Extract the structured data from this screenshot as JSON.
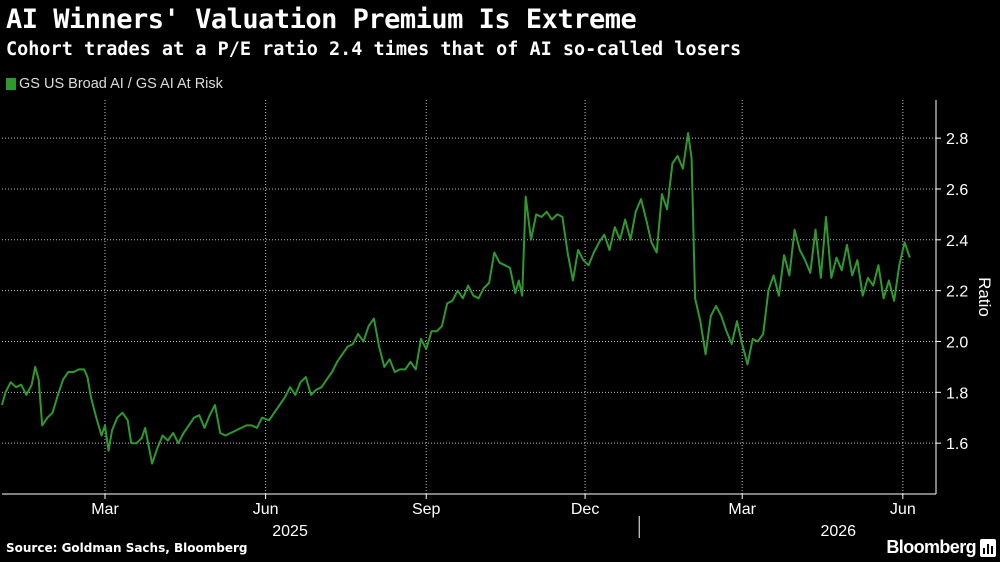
{
  "header": {
    "title": "AI Winners' Valuation Premium Is Extreme",
    "subtitle": "Cohort trades at a P/E ratio 2.4 times that of AI so-called losers"
  },
  "footer": {
    "source": "Source: Goldman Sachs, Bloomberg",
    "brand": "Bloomberg"
  },
  "colors": {
    "background": "#000000",
    "series": "#2e9a2e",
    "text": "#ffffff",
    "grid": "#ffffff"
  },
  "chart_data": {
    "type": "line",
    "title": "AI Winners' Valuation Premium Is Extreme",
    "subtitle": "Cohort trades at a P/E ratio 2.4 times that of AI so-called losers",
    "ylabel": "Ratio",
    "xlabel": "",
    "ylim": [
      1.4,
      2.95
    ],
    "yticks": [
      1.6,
      1.8,
      2.0,
      2.2,
      2.4,
      2.6,
      2.8
    ],
    "xlim": [
      "2025-01-01",
      "2026-06-20"
    ],
    "x_tick_labels": [
      {
        "date": "2025-03-01",
        "label": "Mar"
      },
      {
        "date": "2025-06-01",
        "label": "Jun"
      },
      {
        "date": "2025-09-01",
        "label": "Sep"
      },
      {
        "date": "2025-12-01",
        "label": "Dec"
      },
      {
        "date": "2026-03-01",
        "label": "Mar"
      },
      {
        "date": "2026-06-01",
        "label": "Jun"
      }
    ],
    "year_labels": [
      {
        "date": "2025-06-15",
        "label": "2025"
      },
      {
        "date": "2026-04-25",
        "label": "2026"
      }
    ],
    "year_divider": "2026-01-01",
    "grid": true,
    "legend_position": "top-left",
    "series": [
      {
        "name": "GS US Broad AI / GS AI At Risk",
        "color": "#2e9a2e",
        "points": [
          [
            "2025-01-01",
            1.75
          ],
          [
            "2025-01-03",
            1.8
          ],
          [
            "2025-01-06",
            1.84
          ],
          [
            "2025-01-09",
            1.82
          ],
          [
            "2025-01-12",
            1.83
          ],
          [
            "2025-01-15",
            1.79
          ],
          [
            "2025-01-18",
            1.83
          ],
          [
            "2025-01-20",
            1.9
          ],
          [
            "2025-01-22",
            1.85
          ],
          [
            "2025-01-24",
            1.67
          ],
          [
            "2025-01-27",
            1.7
          ],
          [
            "2025-01-30",
            1.72
          ],
          [
            "2025-02-02",
            1.79
          ],
          [
            "2025-02-05",
            1.85
          ],
          [
            "2025-02-08",
            1.88
          ],
          [
            "2025-02-11",
            1.88
          ],
          [
            "2025-02-14",
            1.89
          ],
          [
            "2025-02-17",
            1.89
          ],
          [
            "2025-02-19",
            1.86
          ],
          [
            "2025-02-21",
            1.78
          ],
          [
            "2025-02-24",
            1.7
          ],
          [
            "2025-02-27",
            1.63
          ],
          [
            "2025-03-01",
            1.67
          ],
          [
            "2025-03-03",
            1.57
          ],
          [
            "2025-03-05",
            1.65
          ],
          [
            "2025-03-08",
            1.7
          ],
          [
            "2025-03-11",
            1.72
          ],
          [
            "2025-03-14",
            1.69
          ],
          [
            "2025-03-16",
            1.6
          ],
          [
            "2025-03-19",
            1.6
          ],
          [
            "2025-03-22",
            1.62
          ],
          [
            "2025-03-24",
            1.66
          ],
          [
            "2025-03-26",
            1.59
          ],
          [
            "2025-03-28",
            1.52
          ],
          [
            "2025-03-31",
            1.58
          ],
          [
            "2025-04-03",
            1.63
          ],
          [
            "2025-04-06",
            1.61
          ],
          [
            "2025-04-09",
            1.64
          ],
          [
            "2025-04-12",
            1.6
          ],
          [
            "2025-04-15",
            1.64
          ],
          [
            "2025-04-18",
            1.67
          ],
          [
            "2025-04-21",
            1.7
          ],
          [
            "2025-04-24",
            1.71
          ],
          [
            "2025-04-27",
            1.66
          ],
          [
            "2025-04-30",
            1.71
          ],
          [
            "2025-05-03",
            1.75
          ],
          [
            "2025-05-06",
            1.64
          ],
          [
            "2025-05-09",
            1.63
          ],
          [
            "2025-05-12",
            1.64
          ],
          [
            "2025-05-15",
            1.65
          ],
          [
            "2025-05-18",
            1.66
          ],
          [
            "2025-05-21",
            1.67
          ],
          [
            "2025-05-24",
            1.67
          ],
          [
            "2025-05-27",
            1.66
          ],
          [
            "2025-05-30",
            1.7
          ],
          [
            "2025-06-03",
            1.69
          ],
          [
            "2025-06-06",
            1.72
          ],
          [
            "2025-06-09",
            1.75
          ],
          [
            "2025-06-12",
            1.78
          ],
          [
            "2025-06-15",
            1.82
          ],
          [
            "2025-06-18",
            1.79
          ],
          [
            "2025-06-21",
            1.84
          ],
          [
            "2025-06-24",
            1.86
          ],
          [
            "2025-06-27",
            1.79
          ],
          [
            "2025-06-30",
            1.81
          ],
          [
            "2025-07-03",
            1.82
          ],
          [
            "2025-07-06",
            1.85
          ],
          [
            "2025-07-09",
            1.88
          ],
          [
            "2025-07-12",
            1.92
          ],
          [
            "2025-07-15",
            1.95
          ],
          [
            "2025-07-18",
            1.98
          ],
          [
            "2025-07-21",
            1.99
          ],
          [
            "2025-07-24",
            2.03
          ],
          [
            "2025-07-27",
            2.0
          ],
          [
            "2025-07-30",
            2.06
          ],
          [
            "2025-08-02",
            2.09
          ],
          [
            "2025-08-05",
            1.98
          ],
          [
            "2025-08-08",
            1.9
          ],
          [
            "2025-08-11",
            1.93
          ],
          [
            "2025-08-14",
            1.88
          ],
          [
            "2025-08-17",
            1.89
          ],
          [
            "2025-08-20",
            1.89
          ],
          [
            "2025-08-23",
            1.92
          ],
          [
            "2025-08-26",
            1.89
          ],
          [
            "2025-08-29",
            2.01
          ],
          [
            "2025-09-01",
            1.97
          ],
          [
            "2025-09-04",
            2.04
          ],
          [
            "2025-09-07",
            2.04
          ],
          [
            "2025-09-10",
            2.06
          ],
          [
            "2025-09-13",
            2.15
          ],
          [
            "2025-09-16",
            2.16
          ],
          [
            "2025-09-19",
            2.2
          ],
          [
            "2025-09-22",
            2.17
          ],
          [
            "2025-09-25",
            2.22
          ],
          [
            "2025-09-28",
            2.18
          ],
          [
            "2025-10-01",
            2.17
          ],
          [
            "2025-10-04",
            2.21
          ],
          [
            "2025-10-07",
            2.23
          ],
          [
            "2025-10-10",
            2.35
          ],
          [
            "2025-10-13",
            2.31
          ],
          [
            "2025-10-16",
            2.3
          ],
          [
            "2025-10-19",
            2.29
          ],
          [
            "2025-10-22",
            2.19
          ],
          [
            "2025-10-24",
            2.24
          ],
          [
            "2025-10-26",
            2.18
          ],
          [
            "2025-10-28",
            2.57
          ],
          [
            "2025-10-31",
            2.4
          ],
          [
            "2025-11-03",
            2.5
          ],
          [
            "2025-11-06",
            2.49
          ],
          [
            "2025-11-09",
            2.51
          ],
          [
            "2025-11-12",
            2.48
          ],
          [
            "2025-11-15",
            2.5
          ],
          [
            "2025-11-18",
            2.49
          ],
          [
            "2025-11-21",
            2.35
          ],
          [
            "2025-11-24",
            2.24
          ],
          [
            "2025-11-27",
            2.36
          ],
          [
            "2025-11-30",
            2.32
          ],
          [
            "2025-12-03",
            2.3
          ],
          [
            "2025-12-06",
            2.35
          ],
          [
            "2025-12-09",
            2.39
          ],
          [
            "2025-12-12",
            2.42
          ],
          [
            "2025-12-15",
            2.36
          ],
          [
            "2025-12-18",
            2.45
          ],
          [
            "2025-12-21",
            2.4
          ],
          [
            "2025-12-24",
            2.48
          ],
          [
            "2025-12-27",
            2.4
          ],
          [
            "2025-12-30",
            2.51
          ],
          [
            "2026-01-02",
            2.56
          ],
          [
            "2026-01-05",
            2.48
          ],
          [
            "2026-01-08",
            2.39
          ],
          [
            "2026-01-11",
            2.35
          ],
          [
            "2026-01-14",
            2.58
          ],
          [
            "2026-01-17",
            2.52
          ],
          [
            "2026-01-20",
            2.7
          ],
          [
            "2026-01-23",
            2.73
          ],
          [
            "2026-01-26",
            2.68
          ],
          [
            "2026-01-29",
            2.82
          ],
          [
            "2026-01-31",
            2.72
          ],
          [
            "2026-02-02",
            2.17
          ],
          [
            "2026-02-05",
            2.08
          ],
          [
            "2026-02-08",
            1.95
          ],
          [
            "2026-02-11",
            2.1
          ],
          [
            "2026-02-14",
            2.14
          ],
          [
            "2026-02-17",
            2.1
          ],
          [
            "2026-02-20",
            2.04
          ],
          [
            "2026-02-23",
            1.99
          ],
          [
            "2026-02-26",
            2.08
          ],
          [
            "2026-03-01",
            1.99
          ],
          [
            "2026-03-04",
            1.91
          ],
          [
            "2026-03-07",
            2.01
          ],
          [
            "2026-03-10",
            2.0
          ],
          [
            "2026-03-13",
            2.03
          ],
          [
            "2026-03-16",
            2.2
          ],
          [
            "2026-03-19",
            2.26
          ],
          [
            "2026-03-22",
            2.18
          ],
          [
            "2026-03-25",
            2.34
          ],
          [
            "2026-03-28",
            2.26
          ],
          [
            "2026-03-31",
            2.44
          ],
          [
            "2026-04-03",
            2.36
          ],
          [
            "2026-04-06",
            2.32
          ],
          [
            "2026-04-09",
            2.27
          ],
          [
            "2026-04-12",
            2.44
          ],
          [
            "2026-04-15",
            2.25
          ],
          [
            "2026-04-18",
            2.49
          ],
          [
            "2026-04-21",
            2.25
          ],
          [
            "2026-04-24",
            2.33
          ],
          [
            "2026-04-27",
            2.28
          ],
          [
            "2026-04-30",
            2.38
          ],
          [
            "2026-05-03",
            2.26
          ],
          [
            "2026-05-06",
            2.32
          ],
          [
            "2026-05-09",
            2.18
          ],
          [
            "2026-05-12",
            2.25
          ],
          [
            "2026-05-15",
            2.22
          ],
          [
            "2026-05-18",
            2.3
          ],
          [
            "2026-05-21",
            2.17
          ],
          [
            "2026-05-24",
            2.24
          ],
          [
            "2026-05-27",
            2.16
          ],
          [
            "2026-05-30",
            2.3
          ],
          [
            "2026-06-02",
            2.39
          ],
          [
            "2026-06-05",
            2.33
          ]
        ]
      }
    ]
  }
}
